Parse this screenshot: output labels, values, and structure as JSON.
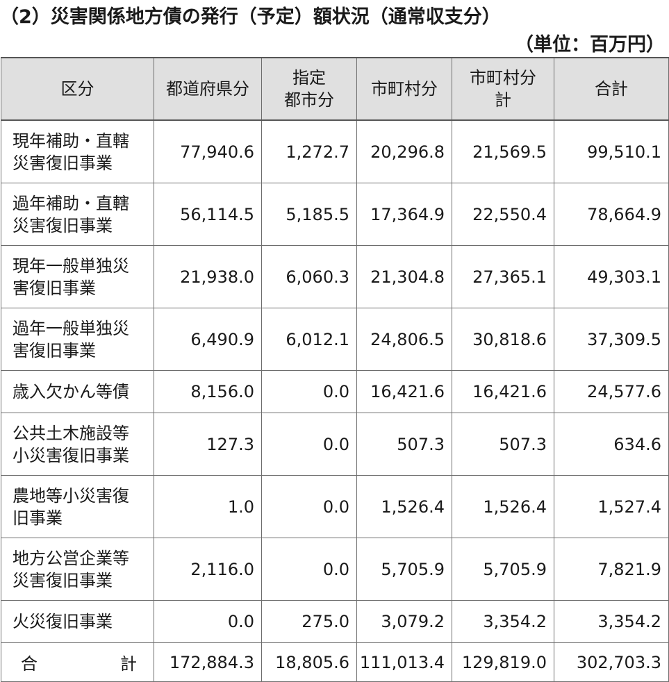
{
  "title": "（2）災害関係地方債の発行（予定）額状況（通常収支分）",
  "unit": "（単位：百万円）",
  "table": {
    "headers": [
      [
        "区分"
      ],
      [
        "都道府県分"
      ],
      [
        "指定",
        "都市分"
      ],
      [
        "市町村分"
      ],
      [
        "市町村分",
        "計"
      ],
      [
        "合計"
      ]
    ],
    "rows": [
      {
        "label": [
          "現年補助・直轄",
          "災害復旧事業"
        ],
        "values": [
          "77,940.6",
          "1,272.7",
          "20,296.8",
          "21,569.5",
          "99,510.1"
        ]
      },
      {
        "label": [
          "過年補助・直轄",
          "災害復旧事業"
        ],
        "values": [
          "56,114.5",
          "5,185.5",
          "17,364.9",
          "22,550.4",
          "78,664.9"
        ]
      },
      {
        "label": [
          "現年一般単独災",
          "害復旧事業"
        ],
        "values": [
          "21,938.0",
          "6,060.3",
          "21,304.8",
          "27,365.1",
          "49,303.1"
        ]
      },
      {
        "label": [
          "過年一般単独災",
          "害復旧事業"
        ],
        "values": [
          "6,490.9",
          "6,012.1",
          "24,806.5",
          "30,818.6",
          "37,309.5"
        ]
      },
      {
        "label": [
          "歳入欠かん等債"
        ],
        "values": [
          "8,156.0",
          "0.0",
          "16,421.6",
          "16,421.6",
          "24,577.6"
        ]
      },
      {
        "label": [
          "公共土木施設等",
          "小災害復旧事業"
        ],
        "values": [
          "127.3",
          "0.0",
          "507.3",
          "507.3",
          "634.6"
        ]
      },
      {
        "label": [
          "農地等小災害復",
          "旧事業"
        ],
        "values": [
          "1.0",
          "0.0",
          "1,526.4",
          "1,526.4",
          "1,527.4"
        ]
      },
      {
        "label": [
          "地方公営企業等",
          "災害復旧事業"
        ],
        "values": [
          "2,116.0",
          "0.0",
          "5,705.9",
          "5,705.9",
          "7,821.9"
        ]
      },
      {
        "label": [
          "火災復旧事業"
        ],
        "values": [
          "0.0",
          "275.0",
          "3,079.2",
          "3,354.2",
          "3,354.2"
        ]
      }
    ],
    "total": {
      "label_left": "合",
      "label_right": "計",
      "values": [
        "172,884.3",
        "18,805.6",
        "111,013.4",
        "129,819.0",
        "302,703.3"
      ]
    }
  }
}
